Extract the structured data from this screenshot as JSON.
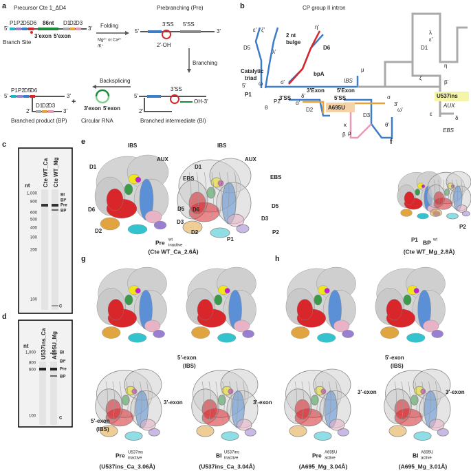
{
  "a": {
    "label": "a",
    "precursor": "Precursor Cte 1_ΔD4",
    "prebranching": "Prebranching (Pre)",
    "domains_5": [
      "P1",
      "P2",
      "D5",
      "D6"
    ],
    "domains_3": [
      "D1",
      "D2",
      "D3"
    ],
    "linker": "86nt",
    "branch_site": "Branch Site",
    "exon_3": "3'exon",
    "exon_5": "5'exon",
    "end_5": "5'",
    "end_3": "3'",
    "folding": "Folding",
    "ions": "Mg²⁺ or Ca²⁺",
    "ions_k": "/K⁺",
    "ss3": "3'SS",
    "ss5": "5'SS",
    "oh": "2'-OH",
    "branching": "Branching",
    "backsplicing": "Backsplicing",
    "plus": "+",
    "bi_oh": "OH-3'",
    "two_prime": "2'",
    "bp_caption": "Branched product (BP)",
    "circ_caption": "Circular RNA",
    "bi_caption": "Branched intermediate (BI)"
  },
  "b": {
    "label": "b",
    "title": "CP group II intron",
    "labels": [
      "D6",
      "2 nt",
      "bulge",
      "D5",
      "Catalytic",
      "triad",
      "bpA",
      "5'",
      "P1",
      "P2",
      "θ",
      "IBS",
      "3'Exon",
      "5'Exon",
      "3'SS",
      "5'SS",
      "A695U",
      "D2",
      "D3",
      "3'",
      "D1",
      "U537ins",
      "AUX",
      "EBS"
    ],
    "greek": [
      "λ",
      "ε'",
      "η",
      "ζ",
      "β'",
      "ε",
      "δ",
      "μ",
      "κ",
      "ρ",
      "β",
      "θ'",
      "α'",
      "δ'",
      "ε'",
      "ζ'",
      "λ'",
      "η'",
      "ω",
      "σ'",
      "ω'",
      "σ"
    ]
  },
  "c": {
    "label": "c",
    "lanes": [
      "Cte WT_Ca",
      "Cte WT_Mg"
    ],
    "unit": "nt",
    "markers": [
      "1,000",
      "800",
      "600",
      "500",
      "400",
      "300",
      "200",
      "100"
    ],
    "bands": [
      "BI",
      "BI*",
      "Pre",
      "BP",
      "C"
    ]
  },
  "d": {
    "label": "d",
    "lanes": [
      "U537ins_Ca",
      "A695U_Mg"
    ],
    "unit": "nt",
    "markers": [
      "1,000",
      "800",
      "600",
      "100"
    ],
    "bands": [
      "BI",
      "BI*",
      "Pre",
      "BP",
      "C"
    ]
  },
  "e": {
    "label": "e",
    "left_labels": [
      "IBS",
      "AUX",
      "D1",
      "EBS",
      "D6",
      "D5",
      "D3",
      "D2"
    ],
    "right_labels": [
      "IBS",
      "AUX",
      "D1",
      "EBS",
      "D6",
      "D5",
      "D3",
      "D2",
      "P1",
      "P2"
    ],
    "caption_main": "Pre",
    "caption_sup": "wt",
    "caption_sub": "inactive",
    "caption_id": "(Cte WT_Ca_2.6Å)"
  },
  "f": {
    "label": "f",
    "labels": [
      "P2",
      "P1"
    ],
    "caption_main": "BP",
    "caption_sup": "wt",
    "caption_id": "(Cte WT_Mg_2.8Å)"
  },
  "g": {
    "label": "g",
    "exon5": "5'-exon",
    "ibs": "(IBS)",
    "exon3": "3'-exon",
    "pre_main": "Pre",
    "pre_sup": "U537ins",
    "pre_sub": "inactive",
    "pre_id": "(U537ins_Ca_3.06Å)",
    "bi_main": "BI",
    "bi_sup": "U537ins",
    "bi_sub": "inactive",
    "bi_id": "(U537ins_Ca_3.04Å)"
  },
  "h": {
    "label": "h",
    "exon5": "5'-exon",
    "ibs": "(IBS)",
    "exon3": "3'-exon",
    "pre_main": "Pre",
    "pre_sup": "A695U",
    "pre_sub": "active",
    "pre_id": "(A695_Mg_3.04Å)",
    "bi_main": "BI",
    "bi_sup": "A695U",
    "bi_sub": "active",
    "bi_id": "(A695_Mg_3.01Å)"
  }
}
